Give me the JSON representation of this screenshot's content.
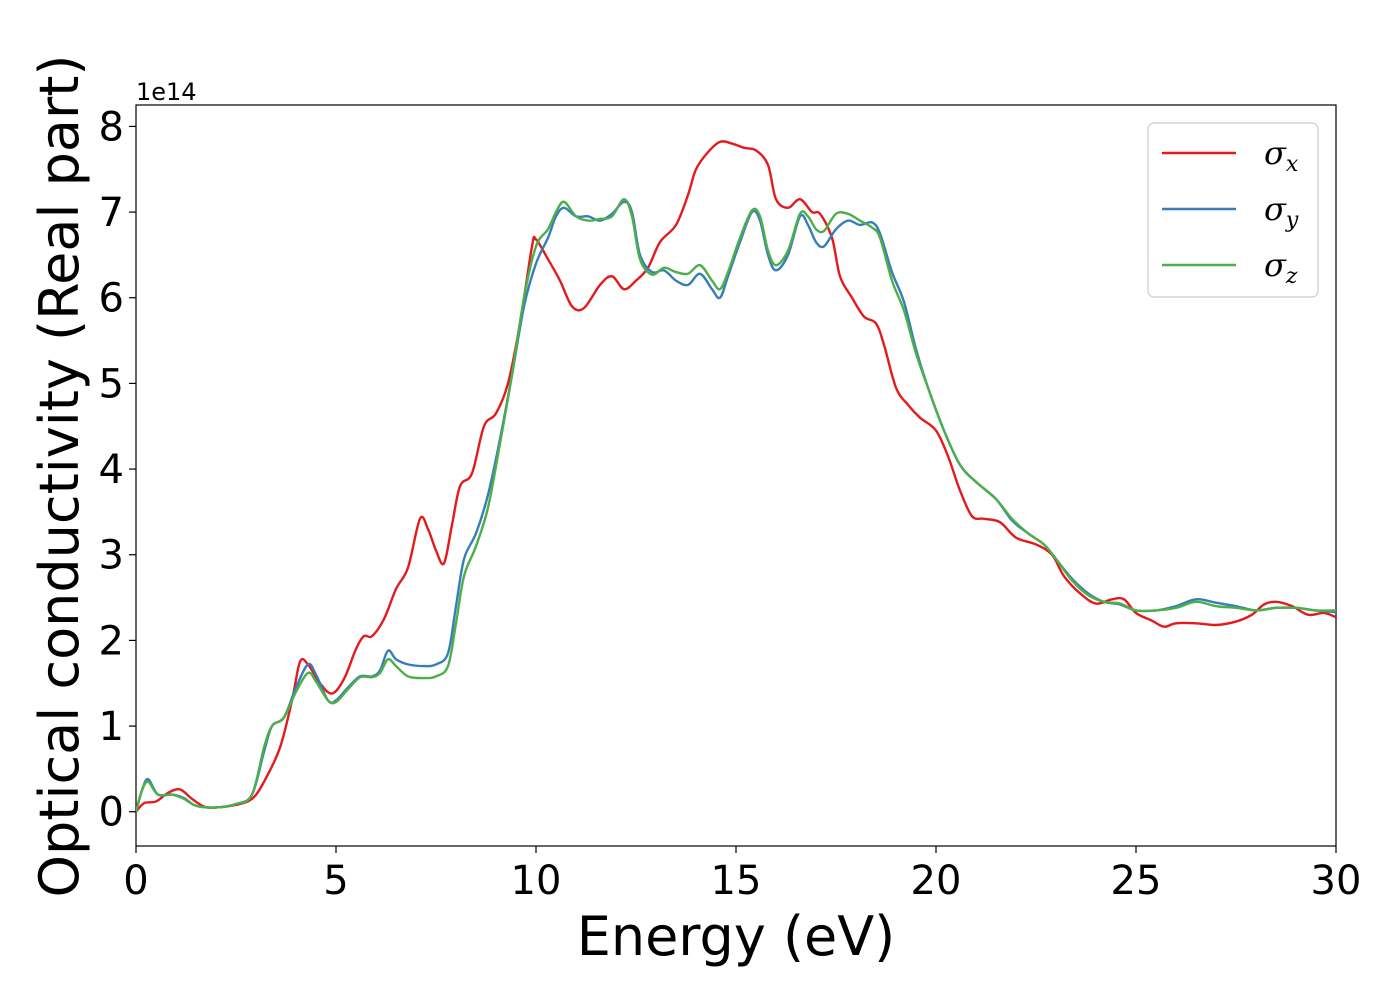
{
  "chart_data": {
    "type": "line",
    "xlabel": "Energy (eV)",
    "ylabel": "Optical conductivity (Real part)",
    "y_offset_label": "1e14",
    "xlim": [
      0,
      30
    ],
    "ylim": [
      -0.4,
      8.25
    ],
    "x_ticks": [
      0,
      5,
      10,
      15,
      20,
      25,
      30
    ],
    "y_ticks": [
      0,
      1,
      2,
      3,
      4,
      5,
      6,
      7,
      8
    ],
    "grid": false,
    "legend_position": "top-right",
    "series": [
      {
        "name": "σx",
        "symbol": "σ",
        "subscript": "x",
        "color": "#e41a1c",
        "points": [
          [
            0.0,
            0.0
          ],
          [
            0.2,
            0.1
          ],
          [
            0.5,
            0.12
          ],
          [
            0.8,
            0.22
          ],
          [
            1.1,
            0.26
          ],
          [
            1.4,
            0.15
          ],
          [
            1.7,
            0.06
          ],
          [
            2.0,
            0.05
          ],
          [
            2.5,
            0.08
          ],
          [
            2.9,
            0.15
          ],
          [
            3.2,
            0.35
          ],
          [
            3.6,
            0.75
          ],
          [
            3.9,
            1.3
          ],
          [
            4.1,
            1.75
          ],
          [
            4.3,
            1.72
          ],
          [
            4.6,
            1.5
          ],
          [
            4.9,
            1.38
          ],
          [
            5.2,
            1.55
          ],
          [
            5.5,
            1.9
          ],
          [
            5.7,
            2.05
          ],
          [
            5.9,
            2.05
          ],
          [
            6.2,
            2.25
          ],
          [
            6.5,
            2.6
          ],
          [
            6.8,
            2.85
          ],
          [
            7.1,
            3.42
          ],
          [
            7.3,
            3.3
          ],
          [
            7.5,
            3.05
          ],
          [
            7.7,
            2.9
          ],
          [
            7.9,
            3.35
          ],
          [
            8.1,
            3.8
          ],
          [
            8.4,
            3.95
          ],
          [
            8.7,
            4.5
          ],
          [
            9.0,
            4.65
          ],
          [
            9.3,
            5.0
          ],
          [
            9.6,
            5.7
          ],
          [
            9.9,
            6.6
          ],
          [
            10.0,
            6.68
          ],
          [
            10.3,
            6.45
          ],
          [
            10.6,
            6.2
          ],
          [
            10.9,
            5.9
          ],
          [
            11.2,
            5.88
          ],
          [
            11.6,
            6.15
          ],
          [
            11.9,
            6.25
          ],
          [
            12.2,
            6.1
          ],
          [
            12.5,
            6.2
          ],
          [
            12.8,
            6.35
          ],
          [
            13.1,
            6.65
          ],
          [
            13.5,
            6.85
          ],
          [
            13.8,
            7.2
          ],
          [
            14.0,
            7.5
          ],
          [
            14.3,
            7.7
          ],
          [
            14.6,
            7.82
          ],
          [
            14.9,
            7.8
          ],
          [
            15.2,
            7.75
          ],
          [
            15.5,
            7.72
          ],
          [
            15.8,
            7.55
          ],
          [
            16.0,
            7.15
          ],
          [
            16.3,
            7.05
          ],
          [
            16.6,
            7.15
          ],
          [
            16.9,
            7.0
          ],
          [
            17.1,
            6.98
          ],
          [
            17.4,
            6.7
          ],
          [
            17.6,
            6.25
          ],
          [
            17.9,
            6.0
          ],
          [
            18.2,
            5.78
          ],
          [
            18.5,
            5.7
          ],
          [
            18.7,
            5.45
          ],
          [
            19.0,
            4.95
          ],
          [
            19.3,
            4.75
          ],
          [
            19.6,
            4.6
          ],
          [
            20.0,
            4.45
          ],
          [
            20.3,
            4.15
          ],
          [
            20.6,
            3.75
          ],
          [
            20.9,
            3.45
          ],
          [
            21.2,
            3.42
          ],
          [
            21.6,
            3.38
          ],
          [
            22.0,
            3.2
          ],
          [
            22.5,
            3.12
          ],
          [
            22.9,
            3.0
          ],
          [
            23.2,
            2.75
          ],
          [
            23.6,
            2.55
          ],
          [
            24.0,
            2.43
          ],
          [
            24.4,
            2.48
          ],
          [
            24.7,
            2.48
          ],
          [
            25.0,
            2.32
          ],
          [
            25.4,
            2.23
          ],
          [
            25.7,
            2.16
          ],
          [
            26.0,
            2.2
          ],
          [
            26.5,
            2.2
          ],
          [
            27.0,
            2.18
          ],
          [
            27.5,
            2.22
          ],
          [
            27.9,
            2.3
          ],
          [
            28.2,
            2.42
          ],
          [
            28.5,
            2.45
          ],
          [
            28.9,
            2.4
          ],
          [
            29.3,
            2.3
          ],
          [
            29.7,
            2.32
          ],
          [
            30.0,
            2.27
          ]
        ]
      },
      {
        "name": "σy",
        "symbol": "σ",
        "subscript": "y",
        "color": "#377eb8",
        "points": [
          [
            0.0,
            0.0
          ],
          [
            0.15,
            0.25
          ],
          [
            0.3,
            0.38
          ],
          [
            0.55,
            0.2
          ],
          [
            0.9,
            0.2
          ],
          [
            1.2,
            0.16
          ],
          [
            1.5,
            0.07
          ],
          [
            2.0,
            0.05
          ],
          [
            2.5,
            0.09
          ],
          [
            2.9,
            0.2
          ],
          [
            3.2,
            0.7
          ],
          [
            3.4,
            1.0
          ],
          [
            3.7,
            1.1
          ],
          [
            4.0,
            1.45
          ],
          [
            4.3,
            1.72
          ],
          [
            4.5,
            1.6
          ],
          [
            4.8,
            1.3
          ],
          [
            5.0,
            1.3
          ],
          [
            5.3,
            1.45
          ],
          [
            5.6,
            1.58
          ],
          [
            5.9,
            1.58
          ],
          [
            6.1,
            1.65
          ],
          [
            6.3,
            1.88
          ],
          [
            6.5,
            1.78
          ],
          [
            6.8,
            1.72
          ],
          [
            7.2,
            1.7
          ],
          [
            7.5,
            1.72
          ],
          [
            7.8,
            1.85
          ],
          [
            8.0,
            2.4
          ],
          [
            8.2,
            2.95
          ],
          [
            8.5,
            3.25
          ],
          [
            8.8,
            3.7
          ],
          [
            9.1,
            4.35
          ],
          [
            9.4,
            5.1
          ],
          [
            9.7,
            5.9
          ],
          [
            10.0,
            6.4
          ],
          [
            10.3,
            6.7
          ],
          [
            10.5,
            6.95
          ],
          [
            10.7,
            7.05
          ],
          [
            11.0,
            6.95
          ],
          [
            11.3,
            6.95
          ],
          [
            11.6,
            6.9
          ],
          [
            11.9,
            6.98
          ],
          [
            12.2,
            7.12
          ],
          [
            12.4,
            7.0
          ],
          [
            12.6,
            6.5
          ],
          [
            12.9,
            6.3
          ],
          [
            13.2,
            6.32
          ],
          [
            13.5,
            6.2
          ],
          [
            13.8,
            6.15
          ],
          [
            14.1,
            6.28
          ],
          [
            14.4,
            6.1
          ],
          [
            14.6,
            6.0
          ],
          [
            14.8,
            6.25
          ],
          [
            15.1,
            6.65
          ],
          [
            15.4,
            7.0
          ],
          [
            15.6,
            6.9
          ],
          [
            15.8,
            6.5
          ],
          [
            16.0,
            6.32
          ],
          [
            16.3,
            6.5
          ],
          [
            16.6,
            6.95
          ],
          [
            16.8,
            6.85
          ],
          [
            17.0,
            6.65
          ],
          [
            17.2,
            6.6
          ],
          [
            17.5,
            6.8
          ],
          [
            17.8,
            6.9
          ],
          [
            18.1,
            6.85
          ],
          [
            18.4,
            6.88
          ],
          [
            18.6,
            6.75
          ],
          [
            18.9,
            6.3
          ],
          [
            19.2,
            5.95
          ],
          [
            19.5,
            5.4
          ],
          [
            19.8,
            4.95
          ],
          [
            20.2,
            4.45
          ],
          [
            20.6,
            4.05
          ],
          [
            21.0,
            3.85
          ],
          [
            21.5,
            3.65
          ],
          [
            21.9,
            3.4
          ],
          [
            22.3,
            3.25
          ],
          [
            22.7,
            3.12
          ],
          [
            23.0,
            2.95
          ],
          [
            23.4,
            2.72
          ],
          [
            23.8,
            2.55
          ],
          [
            24.2,
            2.45
          ],
          [
            24.6,
            2.42
          ],
          [
            25.0,
            2.35
          ],
          [
            25.5,
            2.35
          ],
          [
            26.0,
            2.4
          ],
          [
            26.5,
            2.48
          ],
          [
            27.0,
            2.44
          ],
          [
            27.5,
            2.4
          ],
          [
            28.0,
            2.35
          ],
          [
            28.5,
            2.38
          ],
          [
            29.0,
            2.38
          ],
          [
            29.5,
            2.35
          ],
          [
            30.0,
            2.33
          ]
        ]
      },
      {
        "name": "σz",
        "symbol": "σ",
        "subscript": "z",
        "color": "#4daf4a",
        "points": [
          [
            0.0,
            0.0
          ],
          [
            0.15,
            0.25
          ],
          [
            0.3,
            0.35
          ],
          [
            0.55,
            0.2
          ],
          [
            0.9,
            0.2
          ],
          [
            1.2,
            0.15
          ],
          [
            1.5,
            0.07
          ],
          [
            2.0,
            0.05
          ],
          [
            2.5,
            0.09
          ],
          [
            2.9,
            0.2
          ],
          [
            3.2,
            0.75
          ],
          [
            3.4,
            1.0
          ],
          [
            3.7,
            1.1
          ],
          [
            4.0,
            1.4
          ],
          [
            4.3,
            1.62
          ],
          [
            4.5,
            1.52
          ],
          [
            4.8,
            1.3
          ],
          [
            5.0,
            1.28
          ],
          [
            5.3,
            1.43
          ],
          [
            5.6,
            1.57
          ],
          [
            5.9,
            1.57
          ],
          [
            6.1,
            1.62
          ],
          [
            6.3,
            1.78
          ],
          [
            6.5,
            1.7
          ],
          [
            6.8,
            1.58
          ],
          [
            7.2,
            1.56
          ],
          [
            7.5,
            1.58
          ],
          [
            7.8,
            1.7
          ],
          [
            8.0,
            2.2
          ],
          [
            8.2,
            2.75
          ],
          [
            8.5,
            3.1
          ],
          [
            8.8,
            3.55
          ],
          [
            9.1,
            4.3
          ],
          [
            9.4,
            5.1
          ],
          [
            9.7,
            6.0
          ],
          [
            10.0,
            6.6
          ],
          [
            10.3,
            6.8
          ],
          [
            10.5,
            7.0
          ],
          [
            10.7,
            7.12
          ],
          [
            11.0,
            6.95
          ],
          [
            11.3,
            6.9
          ],
          [
            11.6,
            6.92
          ],
          [
            11.9,
            6.95
          ],
          [
            12.2,
            7.15
          ],
          [
            12.4,
            6.95
          ],
          [
            12.6,
            6.45
          ],
          [
            12.9,
            6.27
          ],
          [
            13.2,
            6.35
          ],
          [
            13.5,
            6.3
          ],
          [
            13.8,
            6.28
          ],
          [
            14.1,
            6.38
          ],
          [
            14.4,
            6.2
          ],
          [
            14.6,
            6.1
          ],
          [
            14.8,
            6.3
          ],
          [
            15.1,
            6.7
          ],
          [
            15.4,
            7.02
          ],
          [
            15.6,
            6.95
          ],
          [
            15.8,
            6.55
          ],
          [
            16.0,
            6.38
          ],
          [
            16.3,
            6.55
          ],
          [
            16.6,
            6.98
          ],
          [
            16.8,
            6.95
          ],
          [
            17.0,
            6.8
          ],
          [
            17.2,
            6.78
          ],
          [
            17.5,
            6.98
          ],
          [
            17.8,
            6.98
          ],
          [
            18.1,
            6.9
          ],
          [
            18.4,
            6.82
          ],
          [
            18.6,
            6.7
          ],
          [
            18.9,
            6.2
          ],
          [
            19.2,
            5.85
          ],
          [
            19.5,
            5.35
          ],
          [
            19.8,
            4.95
          ],
          [
            20.2,
            4.45
          ],
          [
            20.6,
            4.05
          ],
          [
            21.0,
            3.85
          ],
          [
            21.5,
            3.65
          ],
          [
            21.9,
            3.42
          ],
          [
            22.3,
            3.25
          ],
          [
            22.7,
            3.12
          ],
          [
            23.0,
            2.95
          ],
          [
            23.4,
            2.7
          ],
          [
            23.8,
            2.53
          ],
          [
            24.2,
            2.45
          ],
          [
            24.6,
            2.43
          ],
          [
            25.0,
            2.35
          ],
          [
            25.5,
            2.35
          ],
          [
            26.0,
            2.38
          ],
          [
            26.5,
            2.45
          ],
          [
            27.0,
            2.4
          ],
          [
            27.5,
            2.38
          ],
          [
            28.0,
            2.35
          ],
          [
            28.5,
            2.38
          ],
          [
            29.0,
            2.38
          ],
          [
            29.5,
            2.35
          ],
          [
            30.0,
            2.35
          ]
        ]
      }
    ]
  }
}
